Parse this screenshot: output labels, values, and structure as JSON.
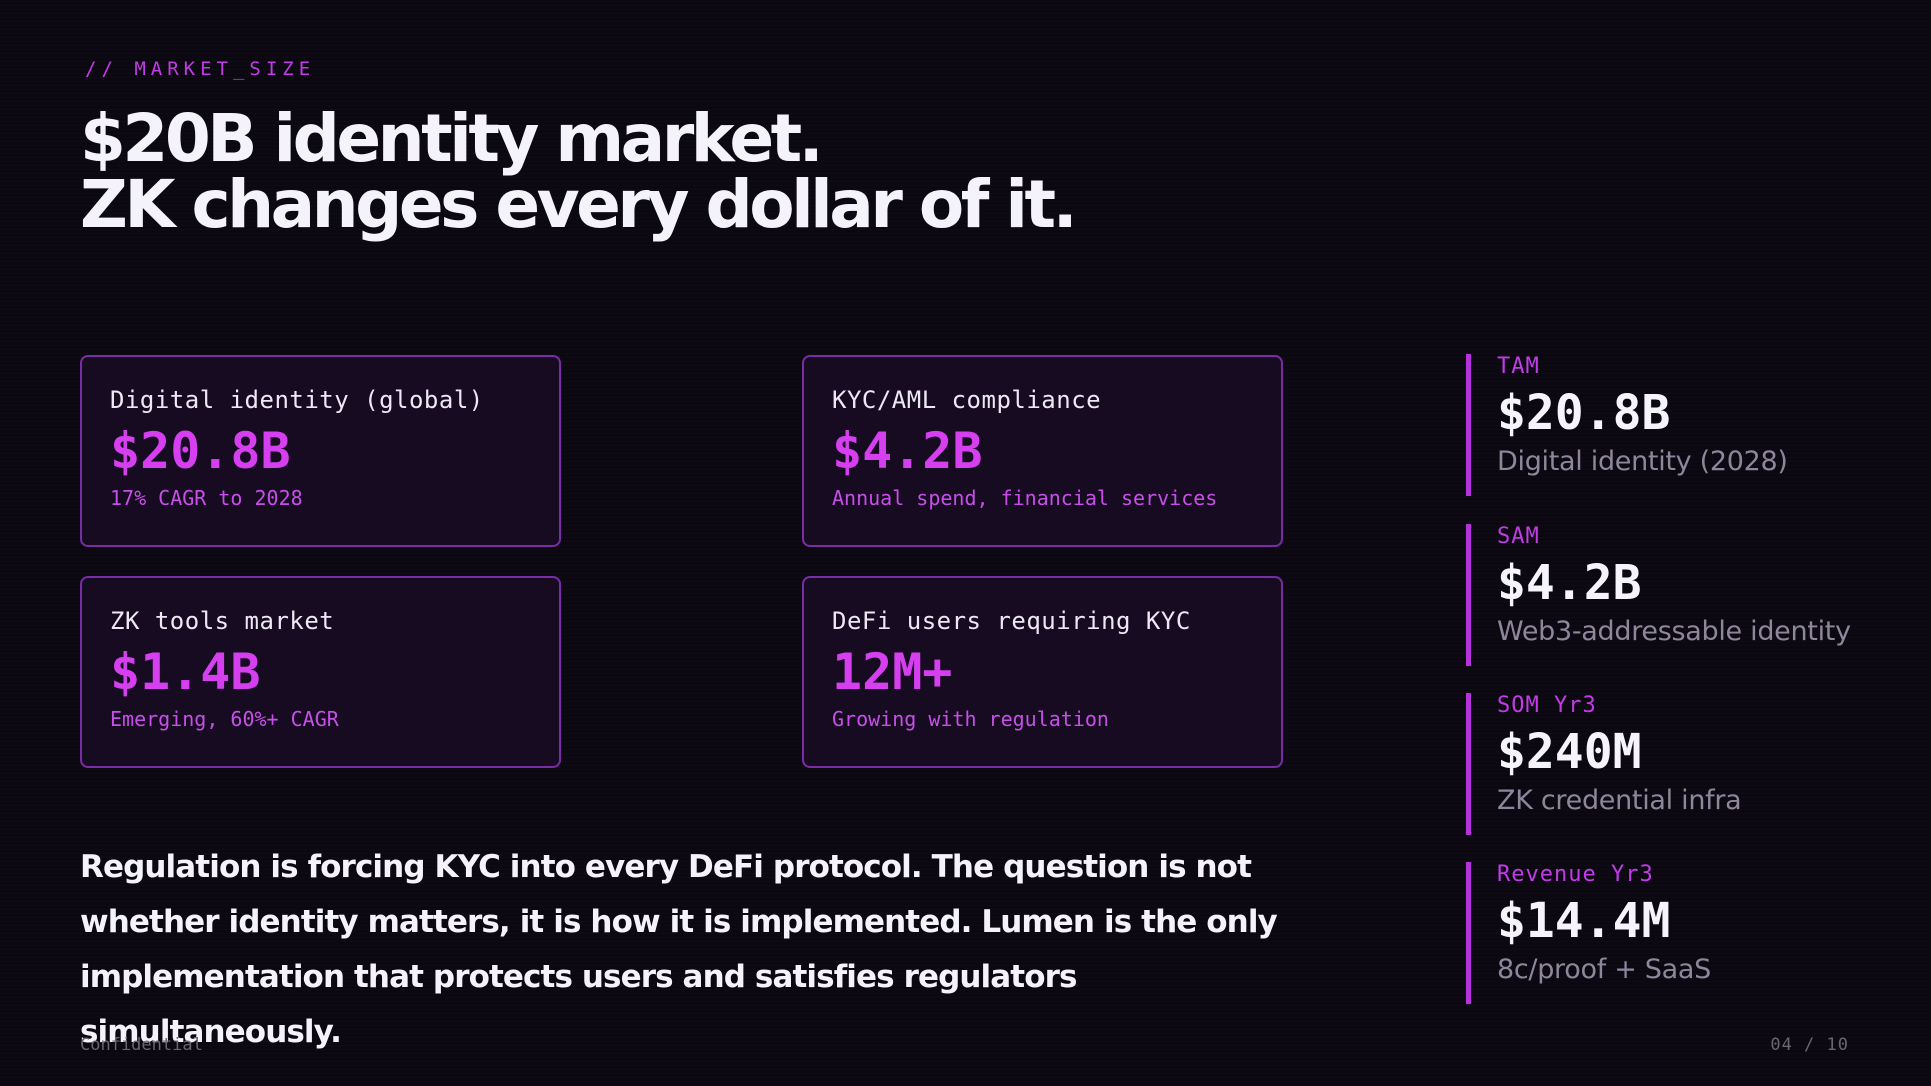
{
  "eyebrow": "// MARKET_SIZE",
  "headline": {
    "line1": "$20B identity market.",
    "line2": "ZK changes every dollar of it."
  },
  "cards": [
    {
      "label": "Digital identity (global)",
      "value": "$20.8B",
      "sub": "17% CAGR to 2028"
    },
    {
      "label": "KYC/AML compliance",
      "value": "$4.2B",
      "sub": "Annual spend, financial services"
    },
    {
      "label": "ZK tools market",
      "value": "$1.4B",
      "sub": "Emerging, 60%+ CAGR"
    },
    {
      "label": "DeFi users requiring KYC",
      "value": "12M+",
      "sub": "Growing with regulation"
    }
  ],
  "body_text": "Regulation is forcing KYC into every DeFi protocol. The question is not whether identity matters, it is how it is implemented. Lumen is the only implementation that protects users and satisfies regulators simultaneously.",
  "metrics": [
    {
      "label": "TAM",
      "value": "$20.8B",
      "sub": "Digital identity (2028)"
    },
    {
      "label": "SAM",
      "value": "$4.2B",
      "sub": "Web3-addressable identity"
    },
    {
      "label": "SOM Yr3",
      "value": "$240M",
      "sub": "ZK credential infra"
    },
    {
      "label": "Revenue Yr3",
      "value": "$14.4M",
      "sub": "8c/proof + SaaS"
    }
  ],
  "footer": {
    "left": "Confidential",
    "page": "04 / 10"
  },
  "colors": {
    "background": "#0c0812",
    "accent": "#d63ff0",
    "card_border": "#7a2ca6",
    "text": "#f4f2fb",
    "muted": "#8e879c"
  }
}
